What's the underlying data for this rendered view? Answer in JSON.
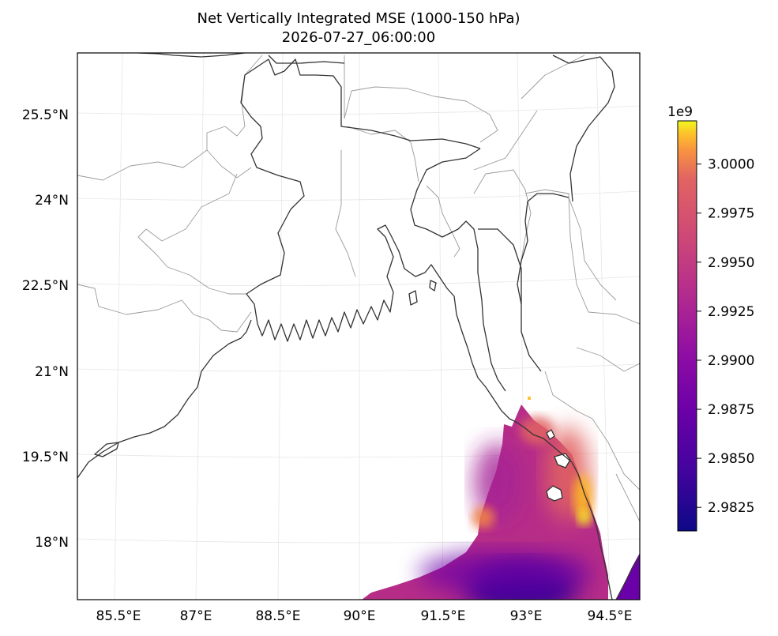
{
  "chart_data": {
    "type": "heatmap",
    "title": "Net Vertically Integrated MSE (1000-150 hPa)",
    "subtitle": "2026-07-27_06:00:00",
    "map_projection": "Lambert conformal",
    "x_ticks": [
      "85.5°E",
      "87°E",
      "88.5°E",
      "90°E",
      "91.5°E",
      "93°E",
      "94.5°E"
    ],
    "y_ticks": [
      "18°N",
      "19.5°N",
      "21°N",
      "22.5°N",
      "24°N",
      "25.5°N"
    ],
    "lon_range": [
      84.8,
      95.0
    ],
    "lat_range": [
      17.0,
      26.5
    ],
    "grid": true,
    "colorbar": {
      "colormap": "plasma",
      "offset_label": "1e9",
      "range": [
        2.9813,
        3.0022
      ],
      "ticks": [
        2.9825,
        2.985,
        2.9875,
        2.99,
        2.9925,
        2.995,
        2.9975,
        3.0
      ],
      "tick_labels": [
        "2.9825",
        "2.9850",
        "2.9875",
        "2.9900",
        "2.9925",
        "2.9950",
        "2.9975",
        "3.0000"
      ]
    },
    "field_summary": {
      "coverage": "ocean only, Bay of Bengal south-east of about 90°E / 20.5°N",
      "typical_value": 2.9905,
      "min_region": "near 93°E, 17.2°N (≈2.982)",
      "max_region": "coastal Myanmar near 94°E, 18.5–19.5°N (≈3.000)"
    }
  }
}
